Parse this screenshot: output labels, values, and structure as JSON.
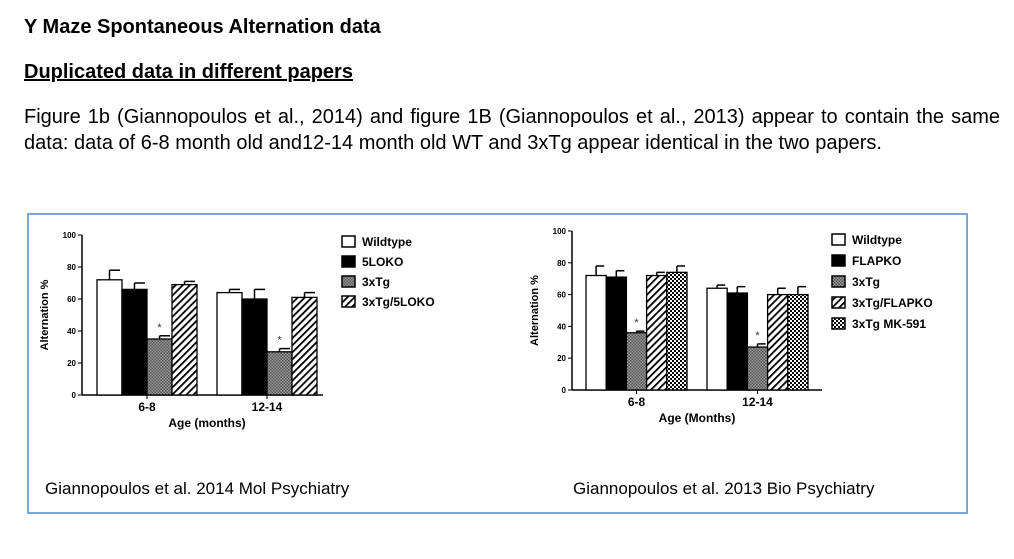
{
  "title": "Y Maze Spontaneous Alternation data",
  "subtitle": "Duplicated data in different papers",
  "paragraph": "Figure 1b (Giannopoulos et al., 2014) and figure 1B (Giannopoulos et al., 2013) appear to contain the same data: data of 6-8 month old and12-14 month old WT and 3xTg appear identical in the two papers.",
  "captions": [
    "Giannopoulos et al. 2014 Mol Psychiatry",
    "Giannopoulos et al. 2013 Bio Psychiatry"
  ],
  "border_color": "#7aa6d6",
  "chart_data": [
    {
      "type": "bar",
      "xlabel": "Age (months)",
      "ylabel": "Alternation %",
      "ylim": [
        0,
        100
      ],
      "yticks": [
        0,
        20,
        40,
        60,
        80,
        100
      ],
      "categories": [
        "6-8",
        "12-14"
      ],
      "legend_position": "right",
      "series": [
        {
          "name": "Wildtype",
          "pattern": "white",
          "values": [
            72,
            64
          ],
          "errors": [
            6,
            2
          ]
        },
        {
          "name": "5LOKO",
          "pattern": "black",
          "values": [
            66,
            60
          ],
          "errors": [
            4,
            6
          ]
        },
        {
          "name": "3xTg",
          "pattern": "dotted-gray",
          "values": [
            35,
            27
          ],
          "errors": [
            2,
            2
          ],
          "annotations": [
            "*",
            "*"
          ]
        },
        {
          "name": "3xTg/5LOKO",
          "pattern": "diagonal-hatch",
          "values": [
            69,
            61
          ],
          "errors": [
            2,
            3
          ]
        }
      ]
    },
    {
      "type": "bar",
      "xlabel": "Age (Months)",
      "ylabel": "Alternation %",
      "ylim": [
        0,
        100
      ],
      "yticks": [
        0,
        20,
        40,
        60,
        80,
        100
      ],
      "categories": [
        "6-8",
        "12-14"
      ],
      "legend_position": "right",
      "series": [
        {
          "name": "Wildtype",
          "pattern": "white",
          "values": [
            72,
            64
          ],
          "errors": [
            6,
            2
          ]
        },
        {
          "name": "FLAPKO",
          "pattern": "black",
          "values": [
            71,
            61
          ],
          "errors": [
            4,
            4
          ]
        },
        {
          "name": "3xTg",
          "pattern": "dotted-gray",
          "values": [
            36,
            27
          ],
          "errors": [
            1,
            2
          ],
          "annotations": [
            "*",
            "*"
          ]
        },
        {
          "name": "3xTg/FLAPKO",
          "pattern": "diagonal-hatch",
          "values": [
            72,
            60
          ],
          "errors": [
            2,
            4
          ]
        },
        {
          "name": "3xTg MK-591",
          "pattern": "checker",
          "values": [
            74,
            60
          ],
          "errors": [
            4,
            5
          ]
        }
      ]
    }
  ]
}
